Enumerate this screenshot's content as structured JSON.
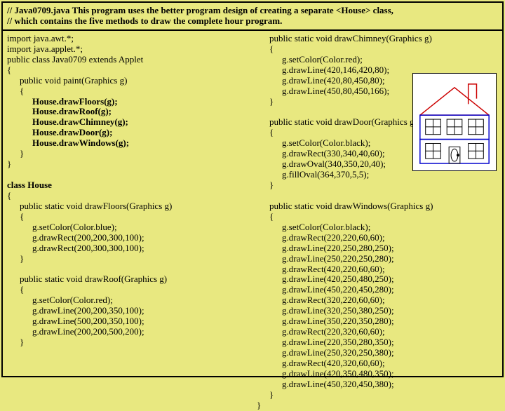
{
  "header": {
    "line1": "// Java0709.java    This program uses the better program design of creating a separate <House> class,",
    "line2": "//  which contains the five methods to draw the complete hour program."
  },
  "left": [
    {
      "t": "import java.awt.*;",
      "cls": "i0"
    },
    {
      "t": "import java.applet.*;",
      "cls": "i0"
    },
    {
      "t": "public class Java0709 extends Applet",
      "cls": "i0"
    },
    {
      "t": "{",
      "cls": "i0"
    },
    {
      "t": "public void paint(Graphics g)",
      "cls": "i1"
    },
    {
      "t": "{",
      "cls": "i1"
    },
    {
      "t": "House.drawFloors(g);",
      "cls": "i2 b"
    },
    {
      "t": "House.drawRoof(g);",
      "cls": "i2 b"
    },
    {
      "t": "House.drawChimney(g);",
      "cls": "i2 b"
    },
    {
      "t": "House.drawDoor(g);",
      "cls": "i2 b"
    },
    {
      "t": "House.drawWindows(g);",
      "cls": "i2 b"
    },
    {
      "t": "}",
      "cls": "i1"
    },
    {
      "t": "}",
      "cls": "i0"
    },
    {
      "t": " ",
      "cls": "i0"
    },
    {
      "t": "class House",
      "cls": "i0 b"
    },
    {
      "t": "{",
      "cls": "i0"
    },
    {
      "t": "public static void drawFloors(Graphics g)",
      "cls": "i1"
    },
    {
      "t": "{",
      "cls": "i1"
    },
    {
      "t": "g.setColor(Color.blue);",
      "cls": "i2"
    },
    {
      "t": "g.drawRect(200,200,300,100);",
      "cls": "i2"
    },
    {
      "t": "g.drawRect(200,300,300,100);",
      "cls": "i2"
    },
    {
      "t": "}",
      "cls": "i1"
    },
    {
      "t": " ",
      "cls": "i0"
    },
    {
      "t": "public static void drawRoof(Graphics g)",
      "cls": "i1"
    },
    {
      "t": "{",
      "cls": "i1"
    },
    {
      "t": "g.setColor(Color.red);",
      "cls": "i2"
    },
    {
      "t": "g.drawLine(200,200,350,100);",
      "cls": "i2"
    },
    {
      "t": "g.drawLine(500,200,350,100);",
      "cls": "i2"
    },
    {
      "t": "g.drawLine(200,200,500,200);",
      "cls": "i2"
    },
    {
      "t": "}",
      "cls": "i1"
    }
  ],
  "right": [
    {
      "t": "public static void drawChimney(Graphics g)",
      "cls": "i1"
    },
    {
      "t": "{",
      "cls": "i1"
    },
    {
      "t": "g.setColor(Color.red);",
      "cls": "i2"
    },
    {
      "t": "g.drawLine(420,146,420,80);",
      "cls": "i2"
    },
    {
      "t": "g.drawLine(420,80,450,80);",
      "cls": "i2"
    },
    {
      "t": "g.drawLine(450,80,450,166);",
      "cls": "i2"
    },
    {
      "t": "}",
      "cls": "i1"
    },
    {
      "t": " ",
      "cls": "i0"
    },
    {
      "t": "public static void drawDoor(Graphics g)",
      "cls": "i1"
    },
    {
      "t": "{",
      "cls": "i1"
    },
    {
      "t": "g.setColor(Color.black);",
      "cls": "i2"
    },
    {
      "t": "g.drawRect(330,340,40,60);",
      "cls": "i2"
    },
    {
      "t": "g.drawOval(340,350,20,40);",
      "cls": "i2"
    },
    {
      "t": "g.fillOval(364,370,5,5);",
      "cls": "i2"
    },
    {
      "t": "}",
      "cls": "i1"
    },
    {
      "t": " ",
      "cls": "i0"
    },
    {
      "t": "public static void drawWindows(Graphics g)",
      "cls": "i1"
    },
    {
      "t": "{",
      "cls": "i1"
    },
    {
      "t": "g.setColor(Color.black);",
      "cls": "i2"
    },
    {
      "t": "g.drawRect(220,220,60,60);",
      "cls": "i2"
    },
    {
      "t": "g.drawLine(220,250,280,250);",
      "cls": "i2"
    },
    {
      "t": "g.drawLine(250,220,250,280);",
      "cls": "i2"
    },
    {
      "t": "g.drawRect(420,220,60,60);",
      "cls": "i2"
    },
    {
      "t": "g.drawLine(420,250,480,250);",
      "cls": "i2"
    },
    {
      "t": "g.drawLine(450,220,450,280);",
      "cls": "i2"
    },
    {
      "t": "g.drawRect(320,220,60,60);",
      "cls": "i2"
    },
    {
      "t": "g.drawLine(320,250,380,250);",
      "cls": "i2"
    },
    {
      "t": "g.drawLine(350,220,350,280);",
      "cls": "i2"
    },
    {
      "t": "g.drawRect(220,320,60,60);",
      "cls": "i2"
    },
    {
      "t": "g.drawLine(220,350,280,350);",
      "cls": "i2"
    },
    {
      "t": "g.drawLine(250,320,250,380);",
      "cls": "i2"
    },
    {
      "t": "g.drawRect(420,320,60,60);",
      "cls": "i2"
    },
    {
      "t": "g.drawLine(420,350,480,350);",
      "cls": "i2"
    },
    {
      "t": "g.drawLine(450,320,450,380);",
      "cls": "i2"
    },
    {
      "t": "}",
      "cls": "i1"
    },
    {
      "t": "}",
      "cls": "i0"
    }
  ],
  "house": {
    "roof_color": "#cc0000",
    "wall_color": "#0000cc",
    "win_color": "#000000"
  }
}
